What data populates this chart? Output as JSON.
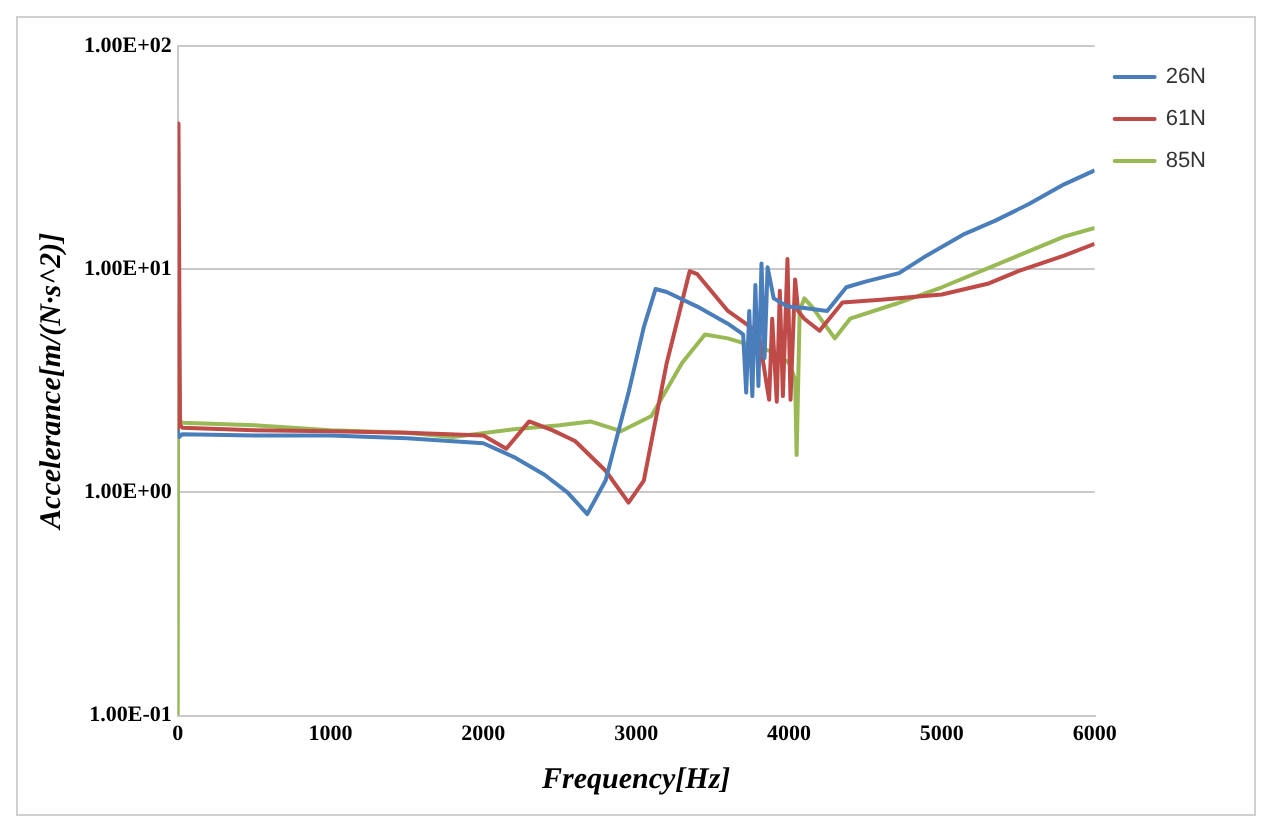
{
  "chart_data": {
    "type": "line",
    "xlabel": "Frequency[Hz]",
    "ylabel": "Accelerance[m/(N·s^2)]",
    "log": "y",
    "grid": "y",
    "legend": "top right",
    "marker": "none",
    "line_style": "solid",
    "xlim": [
      0,
      6000
    ],
    "xticks": [
      0,
      1000,
      2000,
      3000,
      4000,
      5000,
      6000
    ],
    "ylim": [
      0.1,
      100
    ],
    "yticks": [
      {
        "value": 0.1,
        "label": "1.00E-01"
      },
      {
        "value": 1,
        "label": "1.00E+00"
      },
      {
        "value": 10,
        "label": "1.00E+01"
      },
      {
        "value": 100,
        "label": "1.00E+02"
      }
    ],
    "series": [
      {
        "name": "26N",
        "color": "#4a7ebb",
        "x": [
          0,
          10,
          30,
          500,
          1000,
          1500,
          2000,
          2200,
          2400,
          2550,
          2680,
          2800,
          2950,
          3050,
          3127,
          3200,
          3400,
          3600,
          3700,
          3720,
          3740,
          3760,
          3780,
          3800,
          3820,
          3840,
          3860,
          3900,
          3990,
          4100,
          4250,
          4375,
          4500,
          4720,
          4900,
          5150,
          5350,
          5570,
          5800,
          6000
        ],
        "values": [
          1.9,
          1.77,
          1.82,
          1.8,
          1.8,
          1.75,
          1.66,
          1.44,
          1.2,
          1.0,
          0.8,
          1.13,
          2.8,
          5.5,
          8.15,
          7.9,
          6.8,
          5.7,
          5.1,
          2.8,
          6.5,
          2.7,
          8.5,
          3.0,
          10.6,
          4.0,
          10.2,
          7.4,
          6.8,
          6.7,
          6.5,
          8.3,
          8.8,
          9.6,
          11.5,
          14.4,
          16.5,
          19.6,
          24,
          27.7
        ]
      },
      {
        "name": "61N",
        "color": "#be4b48",
        "x": [
          0,
          5,
          15,
          30,
          500,
          1000,
          1500,
          2000,
          2150,
          2300,
          2450,
          2600,
          2800,
          2950,
          3050,
          3200,
          3350,
          3400,
          3600,
          3800,
          3870,
          3890,
          3920,
          3940,
          3960,
          3990,
          4010,
          4040,
          4060,
          4100,
          4200,
          4350,
          4600,
          5000,
          5300,
          5500,
          5800,
          6000
        ],
        "values": [
          1.9,
          45,
          2.0,
          1.95,
          1.9,
          1.88,
          1.85,
          1.8,
          1.57,
          2.08,
          1.9,
          1.7,
          1.25,
          0.9,
          1.13,
          3.8,
          9.8,
          9.5,
          6.5,
          5.2,
          2.6,
          6.0,
          2.55,
          8.0,
          2.7,
          11.1,
          2.6,
          9.0,
          6.5,
          6.0,
          5.3,
          7.1,
          7.3,
          7.7,
          8.6,
          9.8,
          11.5,
          13
        ]
      },
      {
        "name": "85N",
        "color": "#98b954",
        "x": [
          0,
          3,
          15,
          30,
          500,
          1000,
          1500,
          1800,
          2200,
          2500,
          2700,
          2900,
          3100,
          3300,
          3450,
          3600,
          3900,
          4000,
          4040,
          4050,
          4070,
          4100,
          4150,
          4300,
          4400,
          4700,
          5000,
          5500,
          5800,
          6000
        ],
        "values": [
          0.1,
          6.8,
          2.1,
          2.05,
          2.0,
          1.9,
          1.85,
          1.77,
          1.92,
          2.0,
          2.08,
          1.88,
          2.2,
          3.8,
          5.1,
          4.9,
          4.25,
          3.8,
          3.2,
          1.47,
          6.5,
          7.4,
          6.8,
          4.9,
          6.0,
          7.0,
          8.3,
          11.5,
          14,
          15.3
        ]
      }
    ]
  }
}
